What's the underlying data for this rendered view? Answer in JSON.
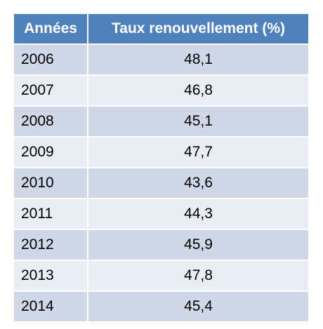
{
  "table": {
    "header": [
      "Années",
      "Taux renouvellement (%)"
    ],
    "rows": [
      [
        "2006",
        "48,1"
      ],
      [
        "2007",
        "46,8"
      ],
      [
        "2008",
        "45,1"
      ],
      [
        "2009",
        "47,7"
      ],
      [
        "2010",
        "43,6"
      ],
      [
        "2011",
        "44,3"
      ],
      [
        "2012",
        "45,9"
      ],
      [
        "2013",
        "47,8"
      ],
      [
        "2014",
        "45,4"
      ]
    ]
  }
}
